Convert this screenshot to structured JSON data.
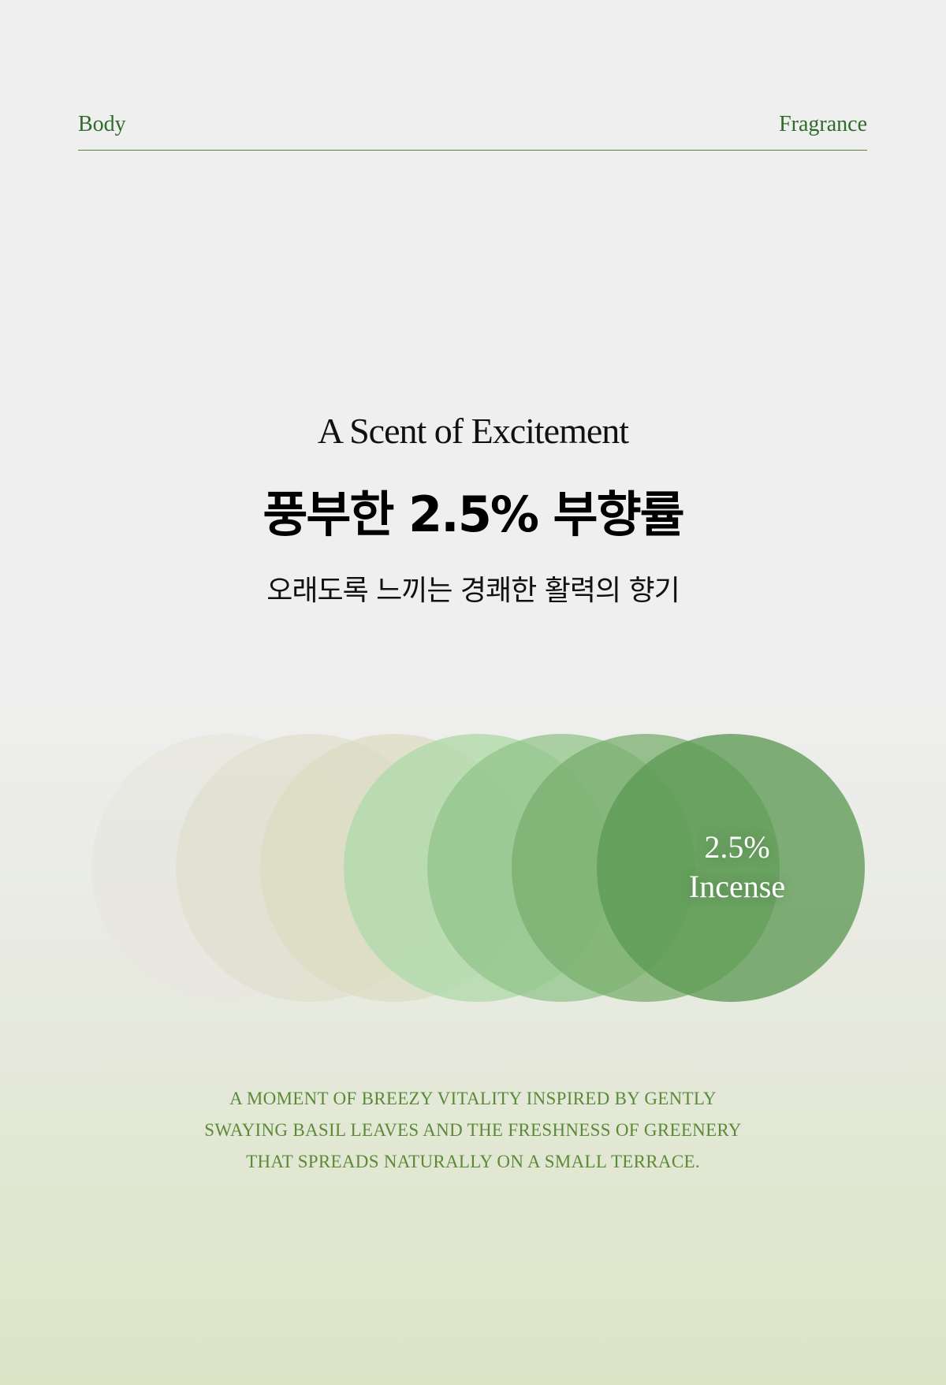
{
  "header": {
    "left_label": "Body",
    "right_label": "Fragrance"
  },
  "hero": {
    "title_en": "A Scent of Excitement",
    "title_ko": "풍부한 2.5% 부향률",
    "subtitle_ko": "오래도록 느끼는 경쾌한 활력의 향기"
  },
  "circles": {
    "colors": [
      "#e8e7e1",
      "#e0dfcf",
      "#dcdcc3",
      "#b4dbae",
      "#91c48b",
      "#7aae6e",
      "#5e9a55"
    ],
    "opacities": [
      0.85,
      0.75,
      0.75,
      0.85,
      0.75,
      0.75,
      0.78
    ]
  },
  "badge": {
    "value": "2.5%",
    "label": "Incense"
  },
  "description": {
    "lines": [
      "A MOMENT OF BREEZY VITALITY INSPIRED BY GENTLY",
      "SWAYING BASIL LEAVES AND THE FRESHNESS OF GREENERY",
      "THAT SPREADS NATURALLY ON A SMALL TERRACE."
    ]
  }
}
